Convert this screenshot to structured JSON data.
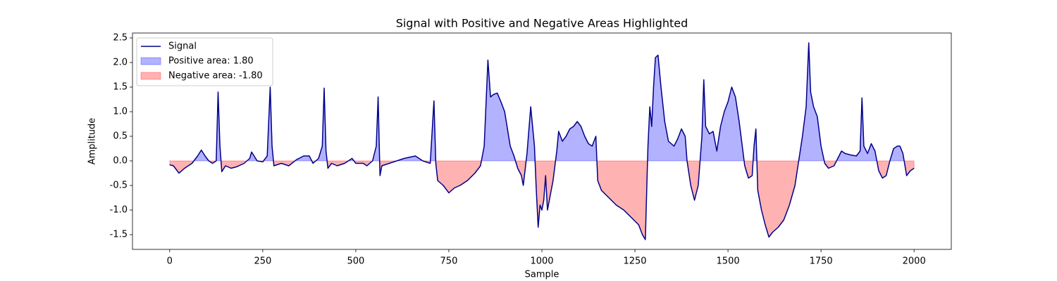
{
  "chart_data": {
    "type": "line",
    "title": "Signal with Positive and Negative Areas Highlighted",
    "xlabel": "Sample",
    "ylabel": "Amplitude",
    "x": [
      0,
      10,
      20,
      25,
      40,
      60,
      75,
      85,
      95,
      105,
      115,
      125,
      130,
      135,
      140,
      150,
      165,
      180,
      200,
      215,
      220,
      235,
      250,
      262,
      270,
      275,
      280,
      300,
      320,
      340,
      360,
      375,
      385,
      400,
      410,
      415,
      420,
      425,
      435,
      450,
      470,
      490,
      500,
      520,
      530,
      545,
      555,
      560,
      565,
      570,
      590,
      610,
      630,
      660,
      680,
      700,
      710,
      715,
      720,
      735,
      750,
      765,
      780,
      800,
      820,
      835,
      845,
      855,
      862,
      870,
      880,
      890,
      900,
      915,
      925,
      935,
      945,
      950,
      960,
      970,
      980,
      985,
      990,
      995,
      1000,
      1005,
      1010,
      1015,
      1020,
      1030,
      1040,
      1045,
      1055,
      1065,
      1075,
      1085,
      1095,
      1105,
      1115,
      1125,
      1135,
      1145,
      1150,
      1160,
      1180,
      1200,
      1220,
      1240,
      1260,
      1270,
      1278,
      1282,
      1285,
      1290,
      1295,
      1300,
      1305,
      1312,
      1320,
      1330,
      1340,
      1355,
      1365,
      1375,
      1385,
      1390,
      1400,
      1410,
      1420,
      1430,
      1435,
      1440,
      1450,
      1460,
      1470,
      1480,
      1490,
      1500,
      1510,
      1520,
      1530,
      1540,
      1545,
      1555,
      1565,
      1570,
      1575,
      1580,
      1590,
      1600,
      1610,
      1620,
      1635,
      1650,
      1665,
      1680,
      1690,
      1700,
      1710,
      1717,
      1722,
      1730,
      1740,
      1750,
      1760,
      1770,
      1785,
      1795,
      1805,
      1815,
      1830,
      1845,
      1855,
      1860,
      1865,
      1875,
      1885,
      1895,
      1905,
      1915,
      1925,
      1935,
      1945,
      1955,
      1962,
      1970,
      1980,
      1990,
      2000
    ],
    "series": [
      {
        "name": "Signal",
        "color": "#00008b",
        "values": [
          -0.08,
          -0.1,
          -0.2,
          -0.25,
          -0.15,
          -0.05,
          0.1,
          0.22,
          0.1,
          0.0,
          -0.05,
          0.0,
          1.4,
          0.3,
          -0.22,
          -0.1,
          -0.15,
          -0.12,
          -0.05,
          0.05,
          0.18,
          0.0,
          -0.02,
          0.1,
          1.5,
          0.3,
          -0.1,
          -0.05,
          -0.1,
          0.02,
          0.1,
          0.1,
          -0.05,
          0.05,
          0.3,
          1.48,
          0.2,
          -0.15,
          -0.05,
          -0.1,
          -0.05,
          0.05,
          -0.05,
          -0.05,
          -0.1,
          0.0,
          0.3,
          1.3,
          -0.3,
          -0.1,
          -0.05,
          0.0,
          0.05,
          0.1,
          0.0,
          -0.05,
          1.22,
          -0.05,
          -0.4,
          -0.5,
          -0.65,
          -0.55,
          -0.5,
          -0.4,
          -0.25,
          -0.1,
          0.3,
          2.05,
          1.3,
          1.35,
          1.38,
          1.2,
          1.0,
          0.3,
          0.1,
          -0.15,
          -0.3,
          -0.5,
          0.15,
          1.1,
          0.3,
          -0.6,
          -1.35,
          -0.9,
          -1.0,
          -0.8,
          -0.3,
          -1.0,
          -0.8,
          -0.4,
          0.2,
          0.6,
          0.4,
          0.5,
          0.65,
          0.7,
          0.8,
          0.7,
          0.5,
          0.35,
          0.3,
          0.5,
          -0.4,
          -0.6,
          -0.75,
          -0.9,
          -1.0,
          -1.15,
          -1.3,
          -1.5,
          -1.6,
          -0.5,
          0.3,
          1.1,
          0.7,
          1.5,
          2.1,
          2.15,
          1.5,
          0.8,
          0.4,
          0.3,
          0.45,
          0.65,
          0.5,
          0.0,
          -0.5,
          -0.8,
          -0.5,
          0.5,
          1.65,
          0.7,
          0.55,
          0.6,
          0.2,
          0.7,
          1.0,
          1.2,
          1.5,
          1.3,
          0.8,
          0.2,
          -0.1,
          -0.35,
          -0.3,
          0.3,
          0.65,
          -0.6,
          -1.0,
          -1.3,
          -1.55,
          -1.45,
          -1.35,
          -1.2,
          -0.9,
          -0.5,
          0.0,
          0.5,
          1.1,
          2.4,
          1.4,
          1.1,
          0.9,
          0.3,
          -0.05,
          -0.15,
          -0.1,
          0.05,
          0.2,
          0.15,
          0.12,
          0.1,
          0.2,
          1.28,
          0.3,
          0.15,
          0.35,
          0.2,
          -0.2,
          -0.35,
          -0.3,
          0.0,
          0.25,
          0.3,
          0.3,
          0.15,
          -0.3,
          -0.2,
          -0.15
        ]
      }
    ],
    "fills": [
      {
        "name": "Positive area: 1.80",
        "color": "#0000ff",
        "where": "positive"
      },
      {
        "name": "Negative area: -1.80",
        "color": "#ff0000",
        "where": "negative"
      }
    ],
    "xlim": [
      -100,
      2100
    ],
    "xticks": [
      0,
      250,
      500,
      750,
      1000,
      1250,
      1500,
      1750,
      2000
    ],
    "ylim": [
      -1.8,
      2.6
    ],
    "yticks": [
      -1.5,
      {
        "value": -1,
        "label": "-1.0"
      },
      -0.5,
      {
        "value": 0,
        "label": "0.0"
      },
      0.5,
      {
        "value": 1,
        "label": "1.0"
      },
      1.5,
      {
        "value": 2,
        "label": "2.0"
      },
      2.5
    ],
    "legend": "upper left"
  }
}
